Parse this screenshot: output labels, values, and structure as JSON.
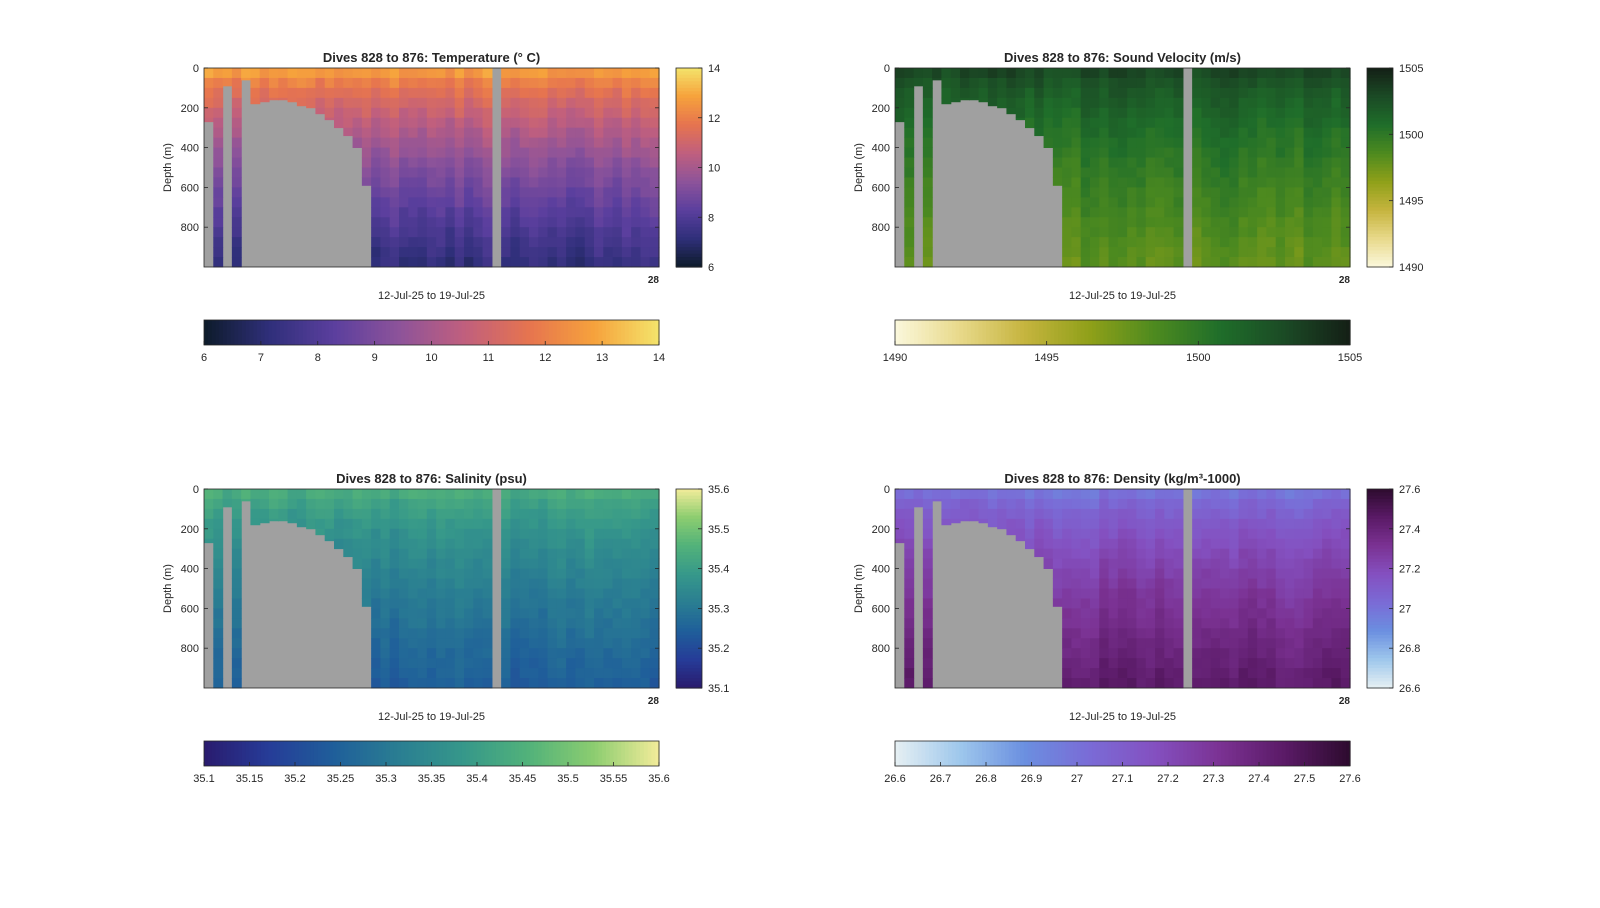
{
  "chart_data": [
    {
      "type": "heatmap",
      "title": "Dives 828 to 876: Temperature (° C)",
      "xlabel": "12-Jul-25 to 19-Jul-25",
      "ylabel": "Depth (m)",
      "y_ticks": [
        "0",
        "200",
        "400",
        "600",
        "800"
      ],
      "x_end_tick": "28",
      "ylim": [
        0,
        1000
      ],
      "y_reversed": true,
      "clim": [
        6,
        14
      ],
      "side_colorbar_ticks": [
        "6",
        "8",
        "10",
        "12",
        "14"
      ],
      "bottom_colorbar_ticks": [
        "6",
        "7",
        "8",
        "9",
        "10",
        "11",
        "12",
        "13",
        "14"
      ],
      "colormap": [
        "#0d1b2a",
        "#2f2f7a",
        "#5b3f9e",
        "#8d539a",
        "#c05f7e",
        "#e6744f",
        "#f6a23c",
        "#f4e46b"
      ],
      "value_at_surface": 13.3,
      "value_at_bottom": 7.2,
      "bathymetry_depth_per_dive_m": [
        270,
        1000,
        90,
        1000,
        60,
        180,
        170,
        160,
        160,
        170,
        190,
        200,
        230,
        260,
        300,
        340,
        400,
        590,
        1000,
        1000,
        1000,
        1000,
        1000,
        1000,
        1000,
        1000,
        1000,
        1000,
        1000,
        1000,
        1000,
        1000,
        1000,
        1000,
        1000,
        1000,
        1000,
        1000,
        1000,
        1000,
        1000,
        1000,
        1000,
        1000,
        1000,
        1000,
        1000,
        1000,
        1000
      ],
      "missing_dive_index": 31
    },
    {
      "type": "heatmap",
      "title": "Dives 828 to 876: Sound Velocity (m/s)",
      "xlabel": "12-Jul-25 to 19-Jul-25",
      "ylabel": "Depth (m)",
      "y_ticks": [
        "0",
        "200",
        "400",
        "600",
        "800"
      ],
      "x_end_tick": "28",
      "ylim": [
        0,
        1000
      ],
      "y_reversed": true,
      "clim": [
        1490,
        1505
      ],
      "side_colorbar_ticks": [
        "1490",
        "1495",
        "1500",
        "1505"
      ],
      "bottom_colorbar_ticks": [
        "1490",
        "1495",
        "1500",
        "1505"
      ],
      "colormap": [
        "#fbf8dc",
        "#e8d98a",
        "#c5b43e",
        "#8fa019",
        "#4d8a1f",
        "#1f6e2a",
        "#1b4a25",
        "#141f16"
      ],
      "value_at_surface": 1503.5,
      "value_at_bottom": 1497.8,
      "bathymetry_depth_per_dive_m": [
        270,
        1000,
        90,
        1000,
        60,
        180,
        170,
        160,
        160,
        170,
        190,
        200,
        230,
        260,
        300,
        340,
        400,
        590,
        1000,
        1000,
        1000,
        1000,
        1000,
        1000,
        1000,
        1000,
        1000,
        1000,
        1000,
        1000,
        1000,
        1000,
        1000,
        1000,
        1000,
        1000,
        1000,
        1000,
        1000,
        1000,
        1000,
        1000,
        1000,
        1000,
        1000,
        1000,
        1000,
        1000,
        1000
      ],
      "missing_dive_index": 31
    },
    {
      "type": "heatmap",
      "title": "Dives 828 to 876: Salinity (psu)",
      "xlabel": "12-Jul-25 to 19-Jul-25",
      "ylabel": "Depth (m)",
      "y_ticks": [
        "0",
        "200",
        "400",
        "600",
        "800"
      ],
      "x_end_tick": "28",
      "ylim": [
        0,
        1000
      ],
      "y_reversed": true,
      "clim": [
        35.1,
        35.6
      ],
      "side_colorbar_ticks": [
        "35.1",
        "35.2",
        "35.3",
        "35.4",
        "35.5",
        "35.6"
      ],
      "bottom_colorbar_ticks": [
        "35.1",
        "35.15",
        "35.2",
        "35.25",
        "35.3",
        "35.35",
        "35.4",
        "35.45",
        "35.5",
        "35.55",
        "35.6"
      ],
      "colormap": [
        "#2a1b6e",
        "#263c98",
        "#1f5f9a",
        "#2a7e92",
        "#36988a",
        "#52b27a",
        "#8ccd70",
        "#f3ec9a"
      ],
      "value_at_surface": 35.46,
      "value_at_bottom": 35.24,
      "bathymetry_depth_per_dive_m": [
        270,
        1000,
        90,
        1000,
        60,
        180,
        170,
        160,
        160,
        170,
        190,
        200,
        230,
        260,
        300,
        340,
        400,
        590,
        1000,
        1000,
        1000,
        1000,
        1000,
        1000,
        1000,
        1000,
        1000,
        1000,
        1000,
        1000,
        1000,
        1000,
        1000,
        1000,
        1000,
        1000,
        1000,
        1000,
        1000,
        1000,
        1000,
        1000,
        1000,
        1000,
        1000,
        1000,
        1000,
        1000,
        1000
      ],
      "missing_dive_index": 31
    },
    {
      "type": "heatmap",
      "title": "Dives 828 to 876: Density (kg/m³-1000)",
      "xlabel": "12-Jul-25 to 19-Jul-25",
      "ylabel": "Depth (m)",
      "y_ticks": [
        "0",
        "200",
        "400",
        "600",
        "800"
      ],
      "x_end_tick": "28",
      "ylim": [
        0,
        1000
      ],
      "y_reversed": true,
      "clim": [
        26.6,
        27.6
      ],
      "side_colorbar_ticks": [
        "26.6",
        "26.8",
        "27",
        "27.2",
        "27.4",
        "27.6"
      ],
      "bottom_colorbar_ticks": [
        "26.6",
        "26.7",
        "26.8",
        "26.9",
        "27",
        "27.1",
        "27.2",
        "27.3",
        "27.4",
        "27.5",
        "27.6"
      ],
      "colormap": [
        "#e6f0f3",
        "#9ec7ec",
        "#6b8fe0",
        "#7a6bd6",
        "#8450c0",
        "#7b3293",
        "#5a1a66",
        "#2d0b2e"
      ],
      "value_at_surface": 26.95,
      "value_at_bottom": 27.45,
      "bathymetry_depth_per_dive_m": [
        270,
        1000,
        90,
        1000,
        60,
        180,
        170,
        160,
        160,
        170,
        190,
        200,
        230,
        260,
        300,
        340,
        400,
        590,
        1000,
        1000,
        1000,
        1000,
        1000,
        1000,
        1000,
        1000,
        1000,
        1000,
        1000,
        1000,
        1000,
        1000,
        1000,
        1000,
        1000,
        1000,
        1000,
        1000,
        1000,
        1000,
        1000,
        1000,
        1000,
        1000,
        1000,
        1000,
        1000,
        1000,
        1000
      ],
      "missing_dive_index": 31
    }
  ],
  "colors": {
    "land": "#a0a0a0",
    "axis": "#262626"
  }
}
